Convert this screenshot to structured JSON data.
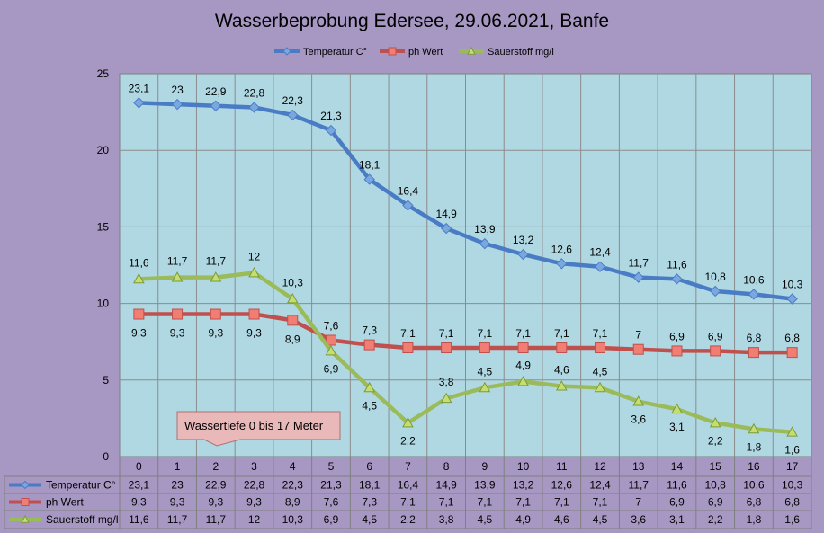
{
  "chart_data": {
    "type": "line",
    "title": "Wasserbeprobung Edersee, 29.06.2021, Banfe",
    "categories": [
      "0",
      "1",
      "2",
      "3",
      "4",
      "5",
      "6",
      "7",
      "8",
      "9",
      "10",
      "11",
      "12",
      "13",
      "14",
      "15",
      "16",
      "17"
    ],
    "ylim": [
      0,
      25
    ],
    "yticks": [
      0,
      5,
      10,
      15,
      20,
      25
    ],
    "grid": true,
    "legend": "top",
    "data_table": true,
    "annotation": "Wassertiefe 0 bis 17 Meter",
    "colors": {
      "plot_bg": "#afd8e3",
      "outer_bg": "#a798c3",
      "temp": "#4a7cc6",
      "ph": "#c0504d",
      "o2": "#9bbb59",
      "callout_fill": "#e9b9b9",
      "callout_stroke": "#b07070"
    },
    "series": [
      {
        "name": "Temperatur C°",
        "marker": "diamond",
        "label_pos": "above",
        "values": [
          23.1,
          23,
          22.9,
          22.8,
          22.3,
          21.3,
          18.1,
          16.4,
          14.9,
          13.9,
          13.2,
          12.6,
          12.4,
          11.7,
          11.6,
          10.8,
          10.6,
          10.3
        ],
        "labels": [
          "23,1",
          "23",
          "22,9",
          "22,8",
          "22,3",
          "21,3",
          "18,1",
          "16,4",
          "14,9",
          "13,9",
          "13,2",
          "12,6",
          "12,4",
          "11,7",
          "11,6",
          "10,8",
          "10,6",
          "10,3"
        ]
      },
      {
        "name": "ph Wert",
        "marker": "square",
        "label_pos": "mixed",
        "values": [
          9.3,
          9.3,
          9.3,
          9.3,
          8.9,
          7.6,
          7.3,
          7.1,
          7.1,
          7.1,
          7.1,
          7.1,
          7.1,
          7,
          6.9,
          6.9,
          6.8,
          6.8
        ],
        "labels": [
          "9,3",
          "9,3",
          "9,3",
          "9,3",
          "8,9",
          "7,6",
          "7,3",
          "7,1",
          "7,1",
          "7,1",
          "7,1",
          "7,1",
          "7,1",
          "7",
          "6,9",
          "6,9",
          "6,8",
          "6,8"
        ]
      },
      {
        "name": "Sauerstoff mg/l",
        "marker": "triangle",
        "label_pos": "mixed",
        "values": [
          11.6,
          11.7,
          11.7,
          12,
          10.3,
          6.9,
          4.5,
          2.2,
          3.8,
          4.5,
          4.9,
          4.6,
          4.5,
          3.6,
          3.1,
          2.2,
          1.8,
          1.6
        ],
        "labels": [
          "11,6",
          "11,7",
          "11,7",
          "12",
          "10,3",
          "6,9",
          "4,5",
          "2,2",
          "3,8",
          "4,5",
          "4,9",
          "4,6",
          "4,5",
          "3,6",
          "3,1",
          "2,2",
          "1,8",
          "1,6"
        ]
      }
    ]
  }
}
